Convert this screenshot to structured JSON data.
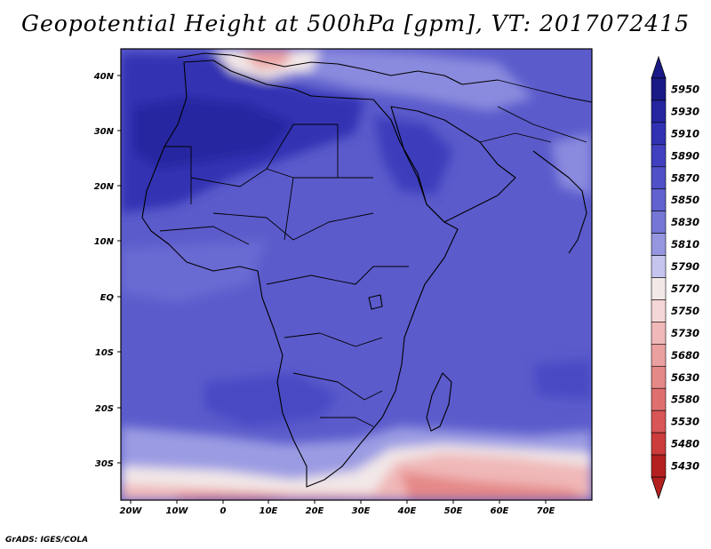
{
  "title": "Geopotential Height at 500hPa [gpm], VT: 2017072415",
  "credit": "GrADS: IGES/COLA",
  "map": {
    "lon_labels": [
      "20W",
      "10W",
      "0",
      "10E",
      "20E",
      "30E",
      "40E",
      "50E",
      "60E",
      "70E"
    ],
    "lat_labels": [
      "40N",
      "30N",
      "20N",
      "10N",
      "EQ",
      "10S",
      "20S",
      "30S"
    ]
  },
  "colorbar": {
    "levels": [
      "5950",
      "5930",
      "5910",
      "5890",
      "5870",
      "5850",
      "5830",
      "5810",
      "5790",
      "5770",
      "5750",
      "5730",
      "5680",
      "5630",
      "5580",
      "5530",
      "5480",
      "5430"
    ],
    "colors": [
      "#1a1a87",
      "#2525a0",
      "#3131b3",
      "#4040c0",
      "#5050c8",
      "#6161cf",
      "#7676d6",
      "#9696e0",
      "#c4c4ef",
      "#f2e8e8",
      "#f5d6d6",
      "#f0b8b8",
      "#eba0a0",
      "#e58888",
      "#df6f6f",
      "#d85656",
      "#cc3c3c",
      "#b42020"
    ],
    "top_color": "#1a1a87",
    "bottom_color": "#b42020"
  },
  "colors": {
    "main_field": "#5b5bcc",
    "deep_field": "#3535b0",
    "light_field": "#8a8ade",
    "warm_field": "#eba0a0",
    "hot_field": "#d85656"
  }
}
